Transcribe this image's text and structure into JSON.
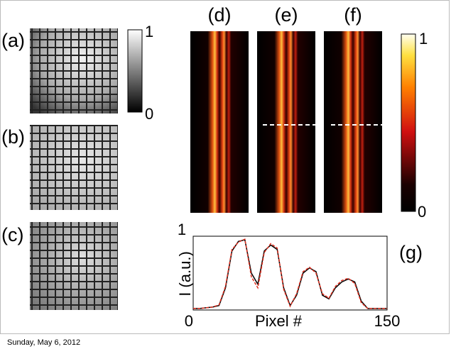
{
  "panels": {
    "a": "(a)",
    "b": "(b)",
    "c": "(c)",
    "d": "(d)",
    "e": "(e)",
    "f": "(f)",
    "g": "(g)"
  },
  "colorbar_gray": {
    "max": "1",
    "min": "0"
  },
  "colorbar_heat": {
    "max": "1",
    "min": "0"
  },
  "plot": {
    "y_label": "I (a.u.)",
    "x_label": "Pixel #",
    "xlim": [
      0,
      150
    ],
    "ylim": [
      0,
      1
    ],
    "xticks": [
      0,
      150
    ],
    "yticks": [
      1
    ],
    "x": [
      0,
      5,
      10,
      15,
      20,
      25,
      30,
      35,
      40,
      45,
      50,
      55,
      60,
      65,
      70,
      75,
      80,
      85,
      90,
      95,
      100,
      105,
      110,
      115,
      120,
      125,
      130,
      135,
      140,
      145,
      150
    ],
    "series": [
      {
        "color": "#000000",
        "values": [
          0.02,
          0.02,
          0.03,
          0.04,
          0.06,
          0.3,
          0.8,
          0.93,
          0.95,
          0.5,
          0.35,
          0.8,
          0.88,
          0.82,
          0.3,
          0.06,
          0.2,
          0.5,
          0.57,
          0.52,
          0.2,
          0.15,
          0.3,
          0.38,
          0.42,
          0.38,
          0.12,
          0.02,
          0.02,
          0.02,
          0.02
        ]
      },
      {
        "color": "#e03020",
        "values": [
          0.02,
          0.02,
          0.03,
          0.04,
          0.07,
          0.32,
          0.82,
          0.92,
          0.96,
          0.45,
          0.3,
          0.78,
          0.9,
          0.84,
          0.28,
          0.05,
          0.22,
          0.52,
          0.58,
          0.5,
          0.22,
          0.16,
          0.32,
          0.4,
          0.43,
          0.36,
          0.1,
          0.02,
          0.02,
          0.02,
          0.02
        ]
      }
    ]
  },
  "footer": "Sunday, May 6, 2012"
}
